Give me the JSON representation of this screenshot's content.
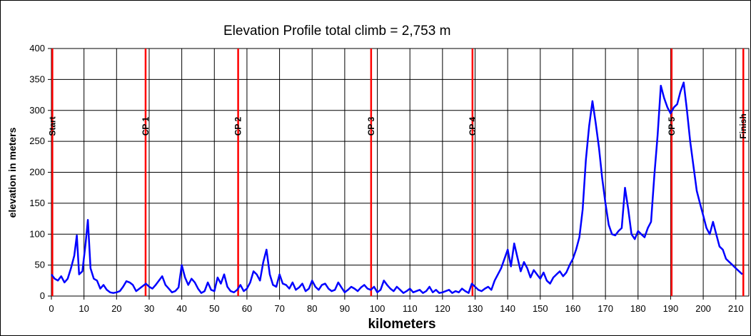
{
  "chart_data": {
    "type": "line",
    "title": "Elevation Profile   total climb = 2,753 m",
    "xlabel": "kilometers",
    "ylabel": "elevation in meters",
    "xlim": [
      0,
      214
    ],
    "ylim": [
      0,
      400
    ],
    "grid": true,
    "line_color": "#0000ff",
    "marker_color": "#ff0000",
    "x_ticks": [
      0,
      10,
      20,
      30,
      40,
      50,
      60,
      70,
      80,
      90,
      100,
      110,
      120,
      130,
      140,
      150,
      160,
      170,
      180,
      190,
      200,
      210
    ],
    "y_ticks": [
      0,
      50,
      100,
      150,
      200,
      250,
      300,
      350,
      400
    ],
    "checkpoints": [
      {
        "label": "Start",
        "km": 0.3
      },
      {
        "label": "CP 1",
        "km": 28.9
      },
      {
        "label": "CP 2",
        "km": 57.3
      },
      {
        "label": "CP 3",
        "km": 98.1
      },
      {
        "label": "CP 4",
        "km": 129.2
      },
      {
        "label": "CP 5",
        "km": 190.3
      },
      {
        "label": "Finish",
        "km": 212.3
      }
    ],
    "series": [
      {
        "x": [
          0,
          1,
          2,
          3,
          4,
          5,
          6,
          7,
          7.8,
          8.5,
          9.5,
          10.5,
          11.2,
          12,
          13,
          14,
          15,
          16,
          17,
          18,
          19,
          20,
          21,
          22,
          23,
          24,
          25,
          26,
          27,
          28,
          29,
          30,
          31,
          32,
          33,
          34,
          35,
          36,
          37,
          38,
          39,
          40,
          41,
          42,
          43,
          44,
          45,
          46,
          47,
          48,
          49,
          50,
          51,
          52,
          53,
          54,
          55,
          56,
          57,
          58,
          59,
          60,
          61,
          62,
          63,
          64,
          65,
          66,
          67,
          68,
          69,
          70,
          71,
          72,
          73,
          74,
          75,
          76,
          77,
          78,
          79,
          80,
          81,
          82,
          83,
          84,
          85,
          86,
          87,
          88,
          89,
          90,
          91,
          92,
          93,
          94,
          95,
          96,
          97,
          98,
          99,
          100,
          101,
          102,
          103,
          104,
          105,
          106,
          107,
          108,
          109,
          110,
          111,
          112,
          113,
          114,
          115,
          116,
          117,
          118,
          119,
          120,
          121,
          122,
          123,
          124,
          125,
          126,
          127,
          128,
          129,
          130,
          131,
          132,
          133,
          134,
          135,
          136,
          137,
          138,
          139,
          140,
          141,
          142,
          143,
          144,
          145,
          146,
          147,
          148,
          149,
          150,
          151,
          152,
          153,
          154,
          155,
          156,
          157,
          158,
          159,
          160,
          161,
          162,
          163,
          164,
          165,
          166,
          167,
          168,
          169,
          170,
          171,
          172,
          173,
          174,
          175,
          176,
          177,
          178,
          179,
          180,
          181,
          182,
          183,
          184,
          185,
          186,
          187,
          188,
          189,
          190,
          191,
          192,
          193,
          194,
          195,
          196,
          197,
          198,
          199,
          200,
          201,
          202,
          203,
          204,
          205,
          206,
          207,
          208,
          209,
          210,
          211,
          212
        ],
        "y": [
          35,
          28,
          25,
          32,
          22,
          28,
          45,
          65,
          98,
          35,
          40,
          85,
          123,
          45,
          28,
          25,
          12,
          18,
          10,
          6,
          5,
          6,
          8,
          15,
          24,
          22,
          18,
          8,
          12,
          16,
          20,
          15,
          12,
          18,
          25,
          32,
          18,
          12,
          6,
          8,
          14,
          50,
          30,
          18,
          28,
          22,
          12,
          5,
          8,
          22,
          10,
          8,
          30,
          20,
          35,
          15,
          8,
          6,
          10,
          18,
          8,
          12,
          22,
          40,
          35,
          25,
          55,
          75,
          35,
          18,
          15,
          35,
          20,
          18,
          12,
          22,
          10,
          14,
          20,
          8,
          12,
          25,
          15,
          10,
          18,
          20,
          12,
          8,
          10,
          22,
          14,
          6,
          10,
          15,
          12,
          8,
          14,
          18,
          12,
          10,
          15,
          6,
          10,
          25,
          18,
          12,
          8,
          15,
          10,
          5,
          8,
          12,
          6,
          8,
          10,
          5,
          8,
          15,
          6,
          10,
          5,
          6,
          8,
          10,
          5,
          8,
          6,
          12,
          8,
          5,
          20,
          15,
          10,
          8,
          12,
          15,
          10,
          25,
          35,
          45,
          60,
          75,
          48,
          85,
          62,
          40,
          55,
          45,
          30,
          42,
          35,
          28,
          38,
          25,
          20,
          30,
          35,
          40,
          32,
          38,
          50,
          60,
          75,
          95,
          140,
          220,
          275,
          315,
          280,
          240,
          190,
          150,
          115,
          100,
          98,
          105,
          110,
          175,
          140,
          100,
          92,
          105,
          100,
          95,
          110,
          120,
          195,
          260,
          340,
          320,
          305,
          295,
          305,
          310,
          330,
          345,
          300,
          250,
          210,
          170,
          150,
          130,
          110,
          100,
          120,
          100,
          80,
          75,
          60,
          55,
          50,
          45,
          40,
          35
        ]
      }
    ]
  }
}
